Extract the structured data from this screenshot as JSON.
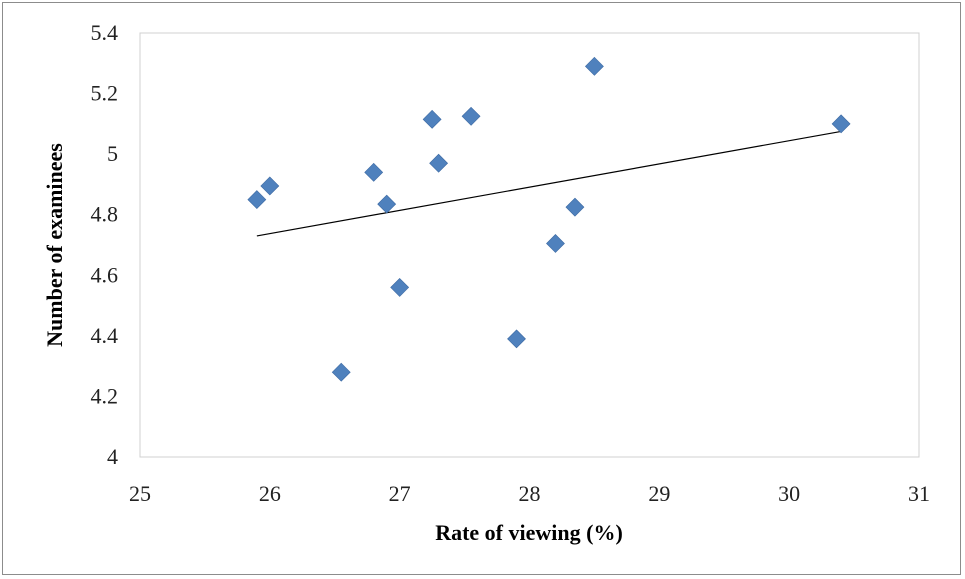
{
  "chart_data": {
    "type": "scatter",
    "title": "",
    "xlabel": "Rate of viewing (%)",
    "ylabel": "Number of examinees",
    "xlim": [
      25,
      31
    ],
    "ylim": [
      4,
      5.4
    ],
    "x_ticks": [
      "25",
      "26",
      "27",
      "28",
      "29",
      "30",
      "31"
    ],
    "y_ticks": [
      "4",
      "4.2",
      "4.4",
      "4.6",
      "4.8",
      "5",
      "5.2",
      "5.4"
    ],
    "grid": false,
    "legend": "none",
    "marker_color": "#4f81bd",
    "marker_shape": "diamond",
    "trendline": {
      "type": "linear",
      "x": [
        25.9,
        30.4
      ],
      "y": [
        4.73,
        5.075
      ],
      "color": "#000000"
    },
    "series": [
      {
        "x": [
          25.9,
          26.0,
          26.55,
          26.8,
          26.9,
          27.0,
          27.25,
          27.3,
          27.55,
          27.9,
          28.2,
          28.35,
          28.5,
          30.4
        ],
        "y": [
          4.85,
          4.895,
          4.28,
          4.94,
          4.835,
          4.56,
          5.115,
          4.97,
          5.125,
          4.39,
          4.705,
          4.825,
          5.29,
          5.1
        ]
      }
    ]
  }
}
